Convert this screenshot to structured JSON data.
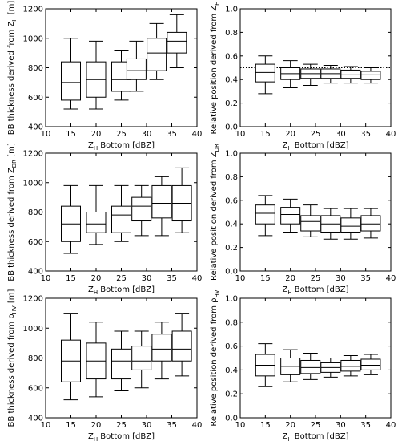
{
  "chart_data": [
    {
      "type": "boxplot",
      "xlabel": {
        "main": "Z",
        "sub": "H",
        "rest": " Bottom [dBZ]"
      },
      "ylabel": {
        "main": "BB thickness derived from Z",
        "sub": "H",
        "rest": " [m]"
      },
      "xlim": [
        10,
        40
      ],
      "ylim": [
        400,
        1200
      ],
      "xticks": [
        "10",
        "15",
        "20",
        "25",
        "30",
        "35",
        "40"
      ],
      "yticks": [
        "400",
        "600",
        "800",
        "1000",
        "1200"
      ],
      "reference_line": null,
      "boxes": [
        {
          "x": 15,
          "whisker_low": 520,
          "q1": 580,
          "median": 700,
          "q3": 840,
          "whisker_high": 1000
        },
        {
          "x": 20,
          "whisker_low": 520,
          "q1": 600,
          "median": 720,
          "q3": 840,
          "whisker_high": 980
        },
        {
          "x": 25,
          "whisker_low": 580,
          "q1": 640,
          "median": 720,
          "q3": 840,
          "whisker_high": 920
        },
        {
          "x": 28,
          "whisker_low": 640,
          "q1": 720,
          "median": 780,
          "q3": 860,
          "whisker_high": 980
        },
        {
          "x": 32,
          "whisker_low": 720,
          "q1": 780,
          "median": 900,
          "q3": 1000,
          "whisker_high": 1100
        },
        {
          "x": 36,
          "whisker_low": 800,
          "q1": 900,
          "median": 980,
          "q3": 1040,
          "whisker_high": 1160
        }
      ]
    },
    {
      "type": "boxplot",
      "xlabel": {
        "main": "Z",
        "sub": "H",
        "rest": " Bottom [dBZ]"
      },
      "ylabel": {
        "main": "Relative position derived from Z",
        "sub": "H",
        "rest": ""
      },
      "xlim": [
        10,
        40
      ],
      "ylim": [
        0,
        1
      ],
      "xticks": [
        "10",
        "15",
        "20",
        "25",
        "30",
        "35",
        "40"
      ],
      "yticks": [
        "0.0",
        "0.2",
        "0.4",
        "0.6",
        "0.8",
        "1.0"
      ],
      "reference_line": 0.5,
      "boxes": [
        {
          "x": 15,
          "whisker_low": 0.28,
          "q1": 0.38,
          "median": 0.46,
          "q3": 0.53,
          "whisker_high": 0.6
        },
        {
          "x": 20,
          "whisker_low": 0.33,
          "q1": 0.4,
          "median": 0.45,
          "q3": 0.5,
          "whisker_high": 0.56
        },
        {
          "x": 24,
          "whisker_low": 0.35,
          "q1": 0.41,
          "median": 0.45,
          "q3": 0.49,
          "whisker_high": 0.53
        },
        {
          "x": 28,
          "whisker_low": 0.37,
          "q1": 0.41,
          "median": 0.45,
          "q3": 0.49,
          "whisker_high": 0.52
        },
        {
          "x": 32,
          "whisker_low": 0.37,
          "q1": 0.41,
          "median": 0.44,
          "q3": 0.48,
          "whisker_high": 0.51
        },
        {
          "x": 36,
          "whisker_low": 0.37,
          "q1": 0.4,
          "median": 0.44,
          "q3": 0.47,
          "whisker_high": 0.5
        }
      ]
    },
    {
      "type": "boxplot",
      "xlabel": {
        "main": "Z",
        "sub": "H",
        "rest": " Bottom [dBZ]"
      },
      "ylabel": {
        "main": "BB thickness derived from Z",
        "sub": "DR",
        "rest": " [m]"
      },
      "xlim": [
        10,
        40
      ],
      "ylim": [
        400,
        1200
      ],
      "xticks": [
        "10",
        "15",
        "20",
        "25",
        "30",
        "35",
        "40"
      ],
      "yticks": [
        "400",
        "600",
        "800",
        "1000",
        "1200"
      ],
      "reference_line": null,
      "boxes": [
        {
          "x": 15,
          "whisker_low": 520,
          "q1": 600,
          "median": 720,
          "q3": 840,
          "whisker_high": 980
        },
        {
          "x": 20,
          "whisker_low": 580,
          "q1": 660,
          "median": 720,
          "q3": 800,
          "whisker_high": 980
        },
        {
          "x": 25,
          "whisker_low": 600,
          "q1": 660,
          "median": 780,
          "q3": 840,
          "whisker_high": 980
        },
        {
          "x": 29,
          "whisker_low": 640,
          "q1": 740,
          "median": 840,
          "q3": 900,
          "whisker_high": 980
        },
        {
          "x": 33,
          "whisker_low": 640,
          "q1": 760,
          "median": 860,
          "q3": 980,
          "whisker_high": 1040
        },
        {
          "x": 37,
          "whisker_low": 660,
          "q1": 740,
          "median": 860,
          "q3": 980,
          "whisker_high": 1100
        }
      ]
    },
    {
      "type": "boxplot",
      "xlabel": {
        "main": "Z",
        "sub": "H",
        "rest": " Bottom [dBZ]"
      },
      "ylabel": {
        "main": "Relative position derived from Z",
        "sub": "DR",
        "rest": ""
      },
      "xlim": [
        10,
        40
      ],
      "ylim": [
        0,
        1
      ],
      "xticks": [
        "10",
        "15",
        "20",
        "25",
        "30",
        "35",
        "40"
      ],
      "yticks": [
        "0.0",
        "0.2",
        "0.4",
        "0.6",
        "0.8",
        "1.0"
      ],
      "reference_line": 0.5,
      "boxes": [
        {
          "x": 15,
          "whisker_low": 0.3,
          "q1": 0.4,
          "median": 0.49,
          "q3": 0.56,
          "whisker_high": 0.64
        },
        {
          "x": 20,
          "whisker_low": 0.33,
          "q1": 0.4,
          "median": 0.48,
          "q3": 0.54,
          "whisker_high": 0.61
        },
        {
          "x": 24,
          "whisker_low": 0.29,
          "q1": 0.34,
          "median": 0.42,
          "q3": 0.47,
          "whisker_high": 0.56
        },
        {
          "x": 28,
          "whisker_low": 0.27,
          "q1": 0.33,
          "median": 0.4,
          "q3": 0.47,
          "whisker_high": 0.53
        },
        {
          "x": 32,
          "whisker_low": 0.27,
          "q1": 0.33,
          "median": 0.38,
          "q3": 0.45,
          "whisker_high": 0.53
        },
        {
          "x": 36,
          "whisker_low": 0.28,
          "q1": 0.34,
          "median": 0.4,
          "q3": 0.47,
          "whisker_high": 0.53
        }
      ]
    },
    {
      "type": "boxplot",
      "xlabel": {
        "main": "Z",
        "sub": "H",
        "rest": " Bottom [dBZ]"
      },
      "ylabel": {
        "main": "BB thickness derived from ρ",
        "sub": "HV",
        "rest": " [m]"
      },
      "xlim": [
        10,
        40
      ],
      "ylim": [
        400,
        1200
      ],
      "xticks": [
        "10",
        "15",
        "20",
        "25",
        "30",
        "35",
        "40"
      ],
      "yticks": [
        "400",
        "600",
        "800",
        "1000",
        "1200"
      ],
      "reference_line": null,
      "boxes": [
        {
          "x": 15,
          "whisker_low": 520,
          "q1": 640,
          "median": 780,
          "q3": 920,
          "whisker_high": 1100
        },
        {
          "x": 20,
          "whisker_low": 540,
          "q1": 660,
          "median": 780,
          "q3": 900,
          "whisker_high": 1040
        },
        {
          "x": 25,
          "whisker_low": 580,
          "q1": 660,
          "median": 780,
          "q3": 860,
          "whisker_high": 980
        },
        {
          "x": 29,
          "whisker_low": 600,
          "q1": 720,
          "median": 780,
          "q3": 880,
          "whisker_high": 980
        },
        {
          "x": 33,
          "whisker_low": 660,
          "q1": 780,
          "median": 860,
          "q3": 960,
          "whisker_high": 1040
        },
        {
          "x": 37,
          "whisker_low": 680,
          "q1": 780,
          "median": 860,
          "q3": 980,
          "whisker_high": 1100
        }
      ]
    },
    {
      "type": "boxplot",
      "xlabel": {
        "main": "Z",
        "sub": "H",
        "rest": " Bottom [dBZ]"
      },
      "ylabel": {
        "main": "Relative position derived from ρ",
        "sub": "HV",
        "rest": ""
      },
      "xlim": [
        10,
        40
      ],
      "ylim": [
        0,
        1
      ],
      "xticks": [
        "10",
        "15",
        "20",
        "25",
        "30",
        "35",
        "40"
      ],
      "yticks": [
        "0.0",
        "0.2",
        "0.4",
        "0.6",
        "0.8",
        "1.0"
      ],
      "reference_line": 0.5,
      "boxes": [
        {
          "x": 15,
          "whisker_low": 0.26,
          "q1": 0.35,
          "median": 0.44,
          "q3": 0.53,
          "whisker_high": 0.62
        },
        {
          "x": 20,
          "whisker_low": 0.3,
          "q1": 0.36,
          "median": 0.43,
          "q3": 0.5,
          "whisker_high": 0.57
        },
        {
          "x": 24,
          "whisker_low": 0.32,
          "q1": 0.37,
          "median": 0.42,
          "q3": 0.48,
          "whisker_high": 0.54
        },
        {
          "x": 28,
          "whisker_low": 0.34,
          "q1": 0.38,
          "median": 0.42,
          "q3": 0.46,
          "whisker_high": 0.5
        },
        {
          "x": 32,
          "whisker_low": 0.35,
          "q1": 0.39,
          "median": 0.43,
          "q3": 0.48,
          "whisker_high": 0.52
        },
        {
          "x": 36,
          "whisker_low": 0.36,
          "q1": 0.4,
          "median": 0.44,
          "q3": 0.49,
          "whisker_high": 0.53
        }
      ]
    }
  ]
}
